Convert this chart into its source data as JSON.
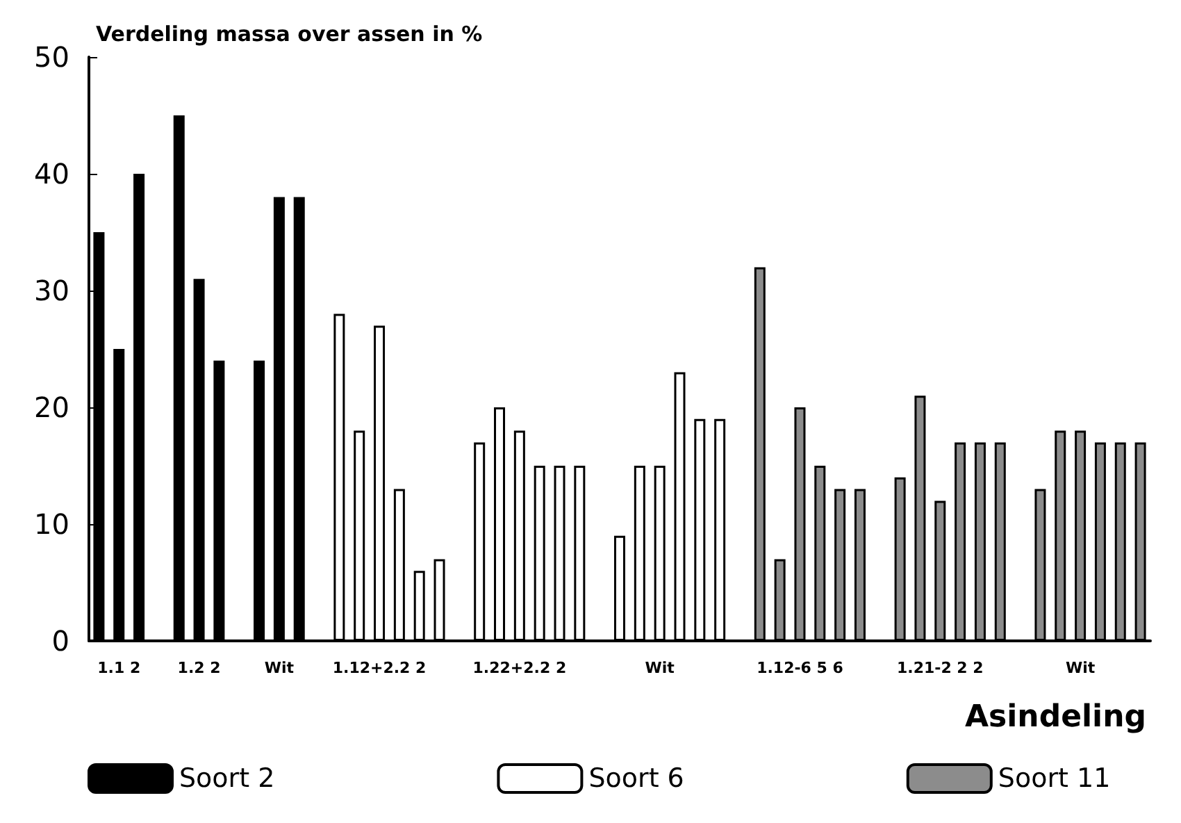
{
  "chart_data": {
    "type": "bar",
    "title": "Verdeling massa over assen in %",
    "xlabel": "Asindeling",
    "categories": [
      null,
      "1.1 2",
      null,
      null,
      null,
      "1.2 2",
      null,
      null,
      null,
      "Wit",
      null,
      null,
      null,
      null,
      "1.12+2.2 2",
      null,
      null,
      null,
      null,
      null,
      null,
      "1.22+2.2 2",
      null,
      null,
      null,
      null,
      null,
      null,
      "Wit",
      null,
      null,
      null,
      null,
      null,
      null,
      "1.12-6 5 6",
      null,
      null,
      null,
      null,
      null,
      null,
      "1.21-2 2 2",
      null,
      null,
      null,
      null,
      null,
      null,
      "Wit",
      null,
      null,
      null
    ],
    "series": [
      {
        "name": "Soort 2",
        "color": "#000000",
        "values": [
          35,
          25,
          40,
          null,
          45,
          31,
          24,
          null,
          24,
          38,
          38,
          null,
          null,
          null,
          null,
          null,
          null,
          null,
          null,
          null,
          null,
          null,
          null,
          null,
          null,
          null,
          null,
          null,
          null,
          null,
          null,
          null,
          null,
          null,
          null,
          null,
          null,
          null,
          null,
          null,
          null,
          null,
          null,
          null,
          null,
          null,
          null,
          null,
          null,
          null,
          null,
          null,
          null
        ]
      },
      {
        "name": "Soort 6",
        "color": "#ffffff",
        "values": [
          null,
          null,
          null,
          null,
          null,
          null,
          null,
          null,
          null,
          null,
          null,
          null,
          28,
          18,
          27,
          13,
          6,
          7,
          null,
          17,
          20,
          18,
          15,
          15,
          15,
          null,
          9,
          15,
          15,
          23,
          19,
          19,
          null,
          null,
          null,
          null,
          null,
          null,
          null,
          null,
          null,
          null,
          null,
          null,
          null,
          null,
          null,
          null,
          null,
          null,
          null,
          null,
          null
        ]
      },
      {
        "name": "Soort 11",
        "color": "#8c8c8c",
        "values": [
          null,
          null,
          null,
          null,
          null,
          null,
          null,
          null,
          null,
          null,
          null,
          null,
          null,
          null,
          null,
          null,
          null,
          null,
          null,
          null,
          null,
          null,
          null,
          null,
          null,
          null,
          null,
          null,
          null,
          null,
          null,
          null,
          null,
          32,
          7,
          20,
          15,
          13,
          13,
          null,
          14,
          21,
          12,
          17,
          17,
          17,
          null,
          13,
          18,
          18,
          17,
          17,
          17
        ]
      }
    ],
    "ylim": [
      0,
      50
    ],
    "yticks": [
      0,
      10,
      20,
      30,
      40,
      50
    ],
    "grid": false,
    "legend": "bottom"
  }
}
